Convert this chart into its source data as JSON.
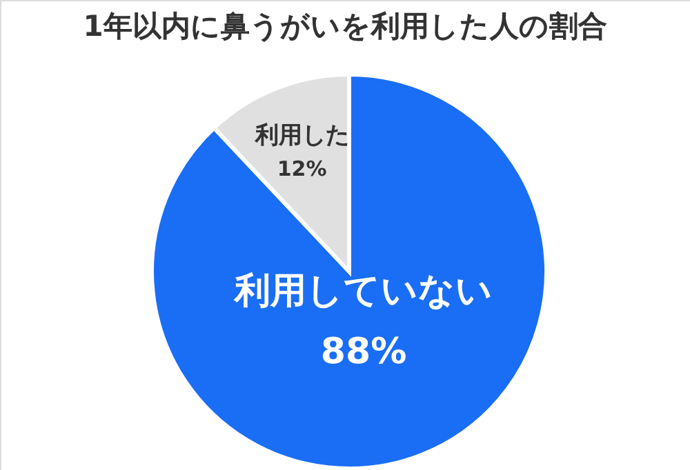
{
  "chart_data": {
    "type": "pie",
    "title": "1年以内に鼻うがいを利用した人の割合",
    "categories": [
      "利用していない",
      "利用した"
    ],
    "values": [
      88,
      12
    ],
    "value_labels": [
      "88%",
      "12%"
    ],
    "colors": [
      "#1a6ef5",
      "#e0e0e0"
    ]
  }
}
